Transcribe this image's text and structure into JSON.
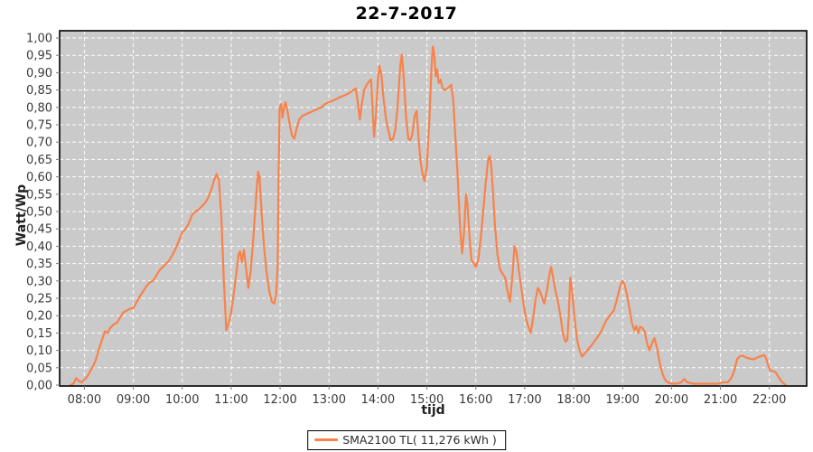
{
  "chart_data": {
    "type": "line",
    "title": "22-7-2017",
    "xlabel": "tijd",
    "ylabel": "Watt/Wp",
    "legend_label": "SMA2100 TL( 11,276 kWh )",
    "legend_position": "bottom-center",
    "grid": true,
    "colors": {
      "plot_bg": "#cacaca",
      "grid": "#ffffff",
      "series": "#f8824a",
      "plot_border": "#000000",
      "tick_mark": "#7a7a7a",
      "tick_label": "#3a3a3a"
    },
    "xlim_hours": [
      7.494,
      22.762
    ],
    "ylim": [
      0.0,
      1.0
    ],
    "x_ticks": [
      {
        "t": 8,
        "label": "08:00"
      },
      {
        "t": 9,
        "label": "09:00"
      },
      {
        "t": 10,
        "label": "10:00"
      },
      {
        "t": 11,
        "label": "11:00"
      },
      {
        "t": 12,
        "label": "12:00"
      },
      {
        "t": 13,
        "label": "13:00"
      },
      {
        "t": 14,
        "label": "14:00"
      },
      {
        "t": 15,
        "label": "15:00"
      },
      {
        "t": 16,
        "label": "16:00"
      },
      {
        "t": 17,
        "label": "17:00"
      },
      {
        "t": 18,
        "label": "18:00"
      },
      {
        "t": 19,
        "label": "19:00"
      },
      {
        "t": 20,
        "label": "20:00"
      },
      {
        "t": 21,
        "label": "21:00"
      },
      {
        "t": 22,
        "label": "22:00"
      }
    ],
    "y_ticks": [
      {
        "v": 0.0,
        "label": "0,00"
      },
      {
        "v": 0.05,
        "label": "0,05"
      },
      {
        "v": 0.1,
        "label": "0,10"
      },
      {
        "v": 0.15,
        "label": "0,15"
      },
      {
        "v": 0.2,
        "label": "0,20"
      },
      {
        "v": 0.25,
        "label": "0,25"
      },
      {
        "v": 0.3,
        "label": "0,30"
      },
      {
        "v": 0.35,
        "label": "0,35"
      },
      {
        "v": 0.4,
        "label": "0,40"
      },
      {
        "v": 0.45,
        "label": "0,45"
      },
      {
        "v": 0.5,
        "label": "0,50"
      },
      {
        "v": 0.55,
        "label": "0,55"
      },
      {
        "v": 0.6,
        "label": "0,60"
      },
      {
        "v": 0.65,
        "label": "0,65"
      },
      {
        "v": 0.7,
        "label": "0,70"
      },
      {
        "v": 0.75,
        "label": "0,75"
      },
      {
        "v": 0.8,
        "label": "0,80"
      },
      {
        "v": 0.85,
        "label": "0,85"
      },
      {
        "v": 0.9,
        "label": "0,90"
      },
      {
        "v": 0.95,
        "label": "0,95"
      },
      {
        "v": 1.0,
        "label": "1,00"
      }
    ],
    "series": [
      {
        "name": "SMA2100 TL( 11,276 kWh )",
        "color": "#f8824a",
        "points": [
          [
            7.72,
            0.0
          ],
          [
            7.78,
            0.005
          ],
          [
            7.83,
            0.02
          ],
          [
            7.89,
            0.012
          ],
          [
            7.95,
            0.008
          ],
          [
            8.0,
            0.015
          ],
          [
            8.06,
            0.025
          ],
          [
            8.12,
            0.04
          ],
          [
            8.18,
            0.055
          ],
          [
            8.24,
            0.075
          ],
          [
            8.3,
            0.105
          ],
          [
            8.36,
            0.13
          ],
          [
            8.42,
            0.155
          ],
          [
            8.47,
            0.15
          ],
          [
            8.53,
            0.165
          ],
          [
            8.6,
            0.175
          ],
          [
            8.67,
            0.18
          ],
          [
            8.73,
            0.195
          ],
          [
            8.8,
            0.21
          ],
          [
            8.87,
            0.215
          ],
          [
            8.93,
            0.22
          ],
          [
            9.0,
            0.222
          ],
          [
            9.07,
            0.24
          ],
          [
            9.13,
            0.255
          ],
          [
            9.2,
            0.27
          ],
          [
            9.27,
            0.285
          ],
          [
            9.33,
            0.295
          ],
          [
            9.4,
            0.3
          ],
          [
            9.47,
            0.315
          ],
          [
            9.53,
            0.33
          ],
          [
            9.6,
            0.34
          ],
          [
            9.67,
            0.35
          ],
          [
            9.73,
            0.358
          ],
          [
            9.8,
            0.375
          ],
          [
            9.87,
            0.395
          ],
          [
            9.93,
            0.415
          ],
          [
            10.0,
            0.44
          ],
          [
            10.07,
            0.45
          ],
          [
            10.13,
            0.465
          ],
          [
            10.2,
            0.49
          ],
          [
            10.27,
            0.5
          ],
          [
            10.33,
            0.505
          ],
          [
            10.4,
            0.515
          ],
          [
            10.47,
            0.525
          ],
          [
            10.53,
            0.54
          ],
          [
            10.6,
            0.565
          ],
          [
            10.65,
            0.59
          ],
          [
            10.7,
            0.608
          ],
          [
            10.75,
            0.59
          ],
          [
            10.8,
            0.48
          ],
          [
            10.85,
            0.3
          ],
          [
            10.9,
            0.158
          ],
          [
            10.95,
            0.18
          ],
          [
            11.0,
            0.21
          ],
          [
            11.05,
            0.26
          ],
          [
            11.1,
            0.315
          ],
          [
            11.15,
            0.375
          ],
          [
            11.18,
            0.385
          ],
          [
            11.22,
            0.355
          ],
          [
            11.26,
            0.39
          ],
          [
            11.3,
            0.34
          ],
          [
            11.35,
            0.28
          ],
          [
            11.4,
            0.33
          ],
          [
            11.45,
            0.42
          ],
          [
            11.5,
            0.52
          ],
          [
            11.55,
            0.615
          ],
          [
            11.58,
            0.6
          ],
          [
            11.62,
            0.5
          ],
          [
            11.67,
            0.4
          ],
          [
            11.72,
            0.33
          ],
          [
            11.78,
            0.27
          ],
          [
            11.83,
            0.24
          ],
          [
            11.88,
            0.235
          ],
          [
            11.92,
            0.26
          ],
          [
            11.95,
            0.35
          ],
          [
            11.97,
            0.6
          ],
          [
            11.99,
            0.795
          ],
          [
            12.02,
            0.81
          ],
          [
            12.05,
            0.77
          ],
          [
            12.08,
            0.8
          ],
          [
            12.11,
            0.815
          ],
          [
            12.15,
            0.79
          ],
          [
            12.19,
            0.755
          ],
          [
            12.24,
            0.72
          ],
          [
            12.29,
            0.71
          ],
          [
            12.34,
            0.74
          ],
          [
            12.39,
            0.765
          ],
          [
            12.45,
            0.775
          ],
          [
            12.52,
            0.78
          ],
          [
            12.6,
            0.785
          ],
          [
            12.68,
            0.79
          ],
          [
            12.76,
            0.795
          ],
          [
            12.84,
            0.8
          ],
          [
            12.92,
            0.81
          ],
          [
            13.0,
            0.815
          ],
          [
            13.08,
            0.82
          ],
          [
            13.16,
            0.825
          ],
          [
            13.24,
            0.83
          ],
          [
            13.32,
            0.835
          ],
          [
            13.4,
            0.84
          ],
          [
            13.48,
            0.848
          ],
          [
            13.55,
            0.855
          ],
          [
            13.6,
            0.8
          ],
          [
            13.63,
            0.765
          ],
          [
            13.67,
            0.81
          ],
          [
            13.72,
            0.85
          ],
          [
            13.77,
            0.865
          ],
          [
            13.82,
            0.875
          ],
          [
            13.86,
            0.88
          ],
          [
            13.89,
            0.8
          ],
          [
            13.92,
            0.715
          ],
          [
            13.96,
            0.78
          ],
          [
            14.0,
            0.88
          ],
          [
            14.03,
            0.92
          ],
          [
            14.07,
            0.895
          ],
          [
            14.11,
            0.83
          ],
          [
            14.16,
            0.77
          ],
          [
            14.21,
            0.735
          ],
          [
            14.26,
            0.705
          ],
          [
            14.31,
            0.71
          ],
          [
            14.36,
            0.74
          ],
          [
            14.41,
            0.82
          ],
          [
            14.46,
            0.925
          ],
          [
            14.49,
            0.952
          ],
          [
            14.53,
            0.88
          ],
          [
            14.57,
            0.78
          ],
          [
            14.62,
            0.71
          ],
          [
            14.66,
            0.705
          ],
          [
            14.7,
            0.72
          ],
          [
            14.75,
            0.775
          ],
          [
            14.79,
            0.79
          ],
          [
            14.83,
            0.71
          ],
          [
            14.87,
            0.645
          ],
          [
            14.91,
            0.61
          ],
          [
            14.95,
            0.588
          ],
          [
            15.0,
            0.63
          ],
          [
            15.05,
            0.76
          ],
          [
            15.09,
            0.9
          ],
          [
            15.12,
            0.975
          ],
          [
            15.15,
            0.955
          ],
          [
            15.18,
            0.89
          ],
          [
            15.21,
            0.91
          ],
          [
            15.24,
            0.87
          ],
          [
            15.28,
            0.88
          ],
          [
            15.32,
            0.855
          ],
          [
            15.37,
            0.85
          ],
          [
            15.42,
            0.855
          ],
          [
            15.46,
            0.86
          ],
          [
            15.5,
            0.865
          ],
          [
            15.54,
            0.82
          ],
          [
            15.58,
            0.72
          ],
          [
            15.63,
            0.6
          ],
          [
            15.68,
            0.45
          ],
          [
            15.72,
            0.38
          ],
          [
            15.76,
            0.44
          ],
          [
            15.8,
            0.55
          ],
          [
            15.83,
            0.52
          ],
          [
            15.87,
            0.43
          ],
          [
            15.91,
            0.36
          ],
          [
            15.96,
            0.35
          ],
          [
            16.0,
            0.34
          ],
          [
            16.05,
            0.36
          ],
          [
            16.1,
            0.42
          ],
          [
            16.15,
            0.5
          ],
          [
            16.2,
            0.58
          ],
          [
            16.25,
            0.648
          ],
          [
            16.28,
            0.66
          ],
          [
            16.31,
            0.64
          ],
          [
            16.35,
            0.56
          ],
          [
            16.39,
            0.46
          ],
          [
            16.44,
            0.38
          ],
          [
            16.49,
            0.335
          ],
          [
            16.55,
            0.32
          ],
          [
            16.6,
            0.31
          ],
          [
            16.65,
            0.27
          ],
          [
            16.7,
            0.24
          ],
          [
            16.75,
            0.32
          ],
          [
            16.79,
            0.4
          ],
          [
            16.83,
            0.385
          ],
          [
            16.88,
            0.33
          ],
          [
            16.93,
            0.28
          ],
          [
            16.98,
            0.23
          ],
          [
            17.03,
            0.19
          ],
          [
            17.08,
            0.165
          ],
          [
            17.12,
            0.15
          ],
          [
            17.17,
            0.19
          ],
          [
            17.22,
            0.245
          ],
          [
            17.27,
            0.28
          ],
          [
            17.31,
            0.27
          ],
          [
            17.36,
            0.25
          ],
          [
            17.4,
            0.235
          ],
          [
            17.45,
            0.27
          ],
          [
            17.5,
            0.315
          ],
          [
            17.54,
            0.34
          ],
          [
            17.58,
            0.31
          ],
          [
            17.63,
            0.27
          ],
          [
            17.68,
            0.24
          ],
          [
            17.73,
            0.2
          ],
          [
            17.78,
            0.15
          ],
          [
            17.83,
            0.125
          ],
          [
            17.87,
            0.13
          ],
          [
            17.9,
            0.2
          ],
          [
            17.93,
            0.31
          ],
          [
            17.97,
            0.27
          ],
          [
            18.02,
            0.19
          ],
          [
            18.07,
            0.13
          ],
          [
            18.12,
            0.1
          ],
          [
            18.17,
            0.082
          ],
          [
            18.22,
            0.09
          ],
          [
            18.28,
            0.1
          ],
          [
            18.35,
            0.112
          ],
          [
            18.42,
            0.125
          ],
          [
            18.5,
            0.14
          ],
          [
            18.58,
            0.16
          ],
          [
            18.66,
            0.185
          ],
          [
            18.74,
            0.2
          ],
          [
            18.82,
            0.215
          ],
          [
            18.89,
            0.25
          ],
          [
            18.95,
            0.285
          ],
          [
            19.0,
            0.3
          ],
          [
            19.04,
            0.29
          ],
          [
            19.09,
            0.26
          ],
          [
            19.14,
            0.22
          ],
          [
            19.19,
            0.18
          ],
          [
            19.24,
            0.158
          ],
          [
            19.28,
            0.17
          ],
          [
            19.32,
            0.15
          ],
          [
            19.36,
            0.168
          ],
          [
            19.4,
            0.165
          ],
          [
            19.45,
            0.155
          ],
          [
            19.5,
            0.12
          ],
          [
            19.55,
            0.1
          ],
          [
            19.6,
            0.12
          ],
          [
            19.65,
            0.135
          ],
          [
            19.7,
            0.11
          ],
          [
            19.75,
            0.07
          ],
          [
            19.8,
            0.04
          ],
          [
            19.85,
            0.02
          ],
          [
            19.9,
            0.01
          ],
          [
            19.97,
            0.005
          ],
          [
            20.1,
            0.004
          ],
          [
            20.2,
            0.008
          ],
          [
            20.26,
            0.018
          ],
          [
            20.32,
            0.008
          ],
          [
            20.45,
            0.004
          ],
          [
            20.7,
            0.004
          ],
          [
            20.95,
            0.004
          ],
          [
            21.05,
            0.008
          ],
          [
            21.15,
            0.008
          ],
          [
            21.22,
            0.02
          ],
          [
            21.28,
            0.04
          ],
          [
            21.34,
            0.075
          ],
          [
            21.4,
            0.083
          ],
          [
            21.45,
            0.085
          ],
          [
            21.52,
            0.08
          ],
          [
            21.6,
            0.076
          ],
          [
            21.68,
            0.074
          ],
          [
            21.76,
            0.08
          ],
          [
            21.84,
            0.084
          ],
          [
            21.9,
            0.086
          ],
          [
            21.94,
            0.075
          ],
          [
            21.98,
            0.055
          ],
          [
            22.02,
            0.042
          ],
          [
            22.07,
            0.04
          ],
          [
            22.12,
            0.038
          ],
          [
            22.18,
            0.025
          ],
          [
            22.24,
            0.012
          ],
          [
            22.3,
            0.004
          ],
          [
            22.33,
            0.0
          ]
        ]
      }
    ]
  }
}
